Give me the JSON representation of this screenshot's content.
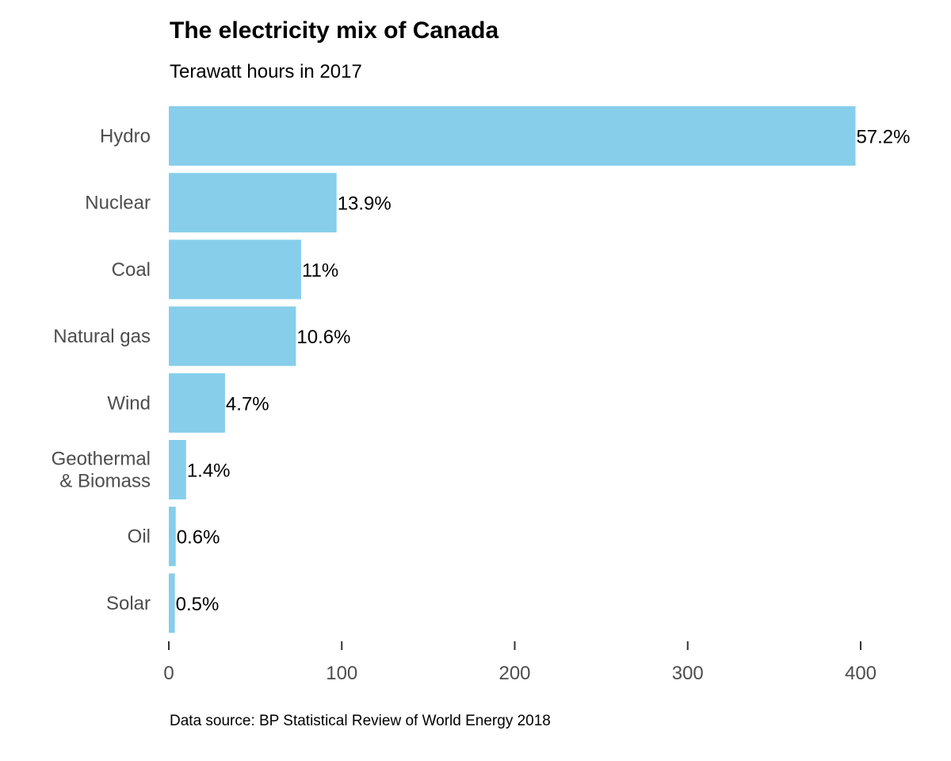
{
  "title": "The electricity mix of Canada",
  "subtitle": "Terawatt hours in 2017",
  "source": "Data source: BP Statistical Review of World Energy 2018",
  "colors": {
    "bar": "#87ceeb",
    "category_label": "#4d4d4d",
    "tick_label": "#4d4d4d",
    "value_label": "#000000",
    "axis_tick": "#333333"
  },
  "chart_data": {
    "type": "bar",
    "orientation": "horizontal",
    "categories": [
      "Hydro",
      "Nuclear",
      "Coal",
      "Natural gas",
      "Wind",
      "Geothermal\n& Biomass",
      "Oil",
      "Solar"
    ],
    "values": [
      397,
      97,
      76.5,
      73.5,
      32.5,
      10,
      4,
      3.5
    ],
    "labels": [
      "57.2%",
      "13.9%",
      "11%",
      "10.6%",
      "4.7%",
      "1.4%",
      "0.6%",
      "0.5%"
    ],
    "xlim": [
      0,
      400
    ],
    "x_ticks": [
      0,
      100,
      200,
      300,
      400
    ],
    "x_tick_labels": [
      "0",
      "100",
      "200",
      "300",
      "400"
    ],
    "grid": false,
    "legend": "none"
  }
}
